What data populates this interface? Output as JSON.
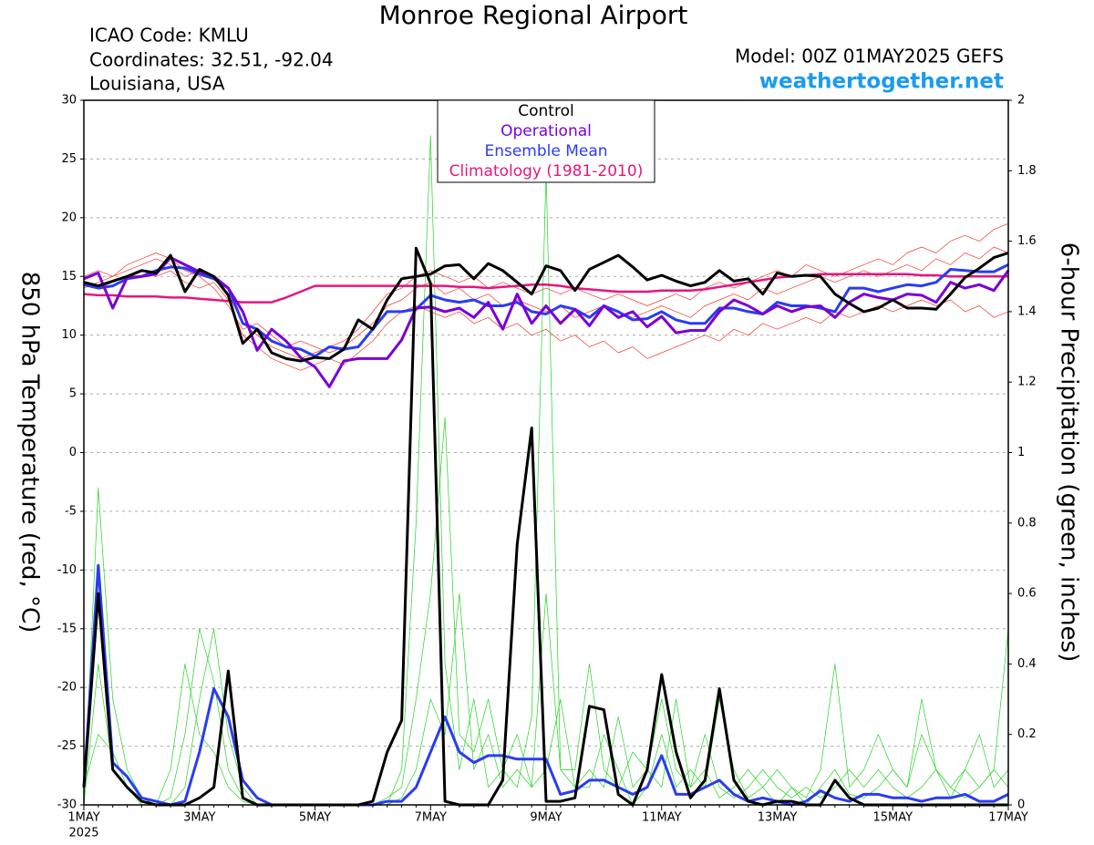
{
  "chart_data": {
    "type": "line",
    "title": "Monroe Regional Airport",
    "info": [
      "ICAO Code: KMLU",
      "Coordinates: 32.51, -92.04",
      "Louisiana, USA"
    ],
    "model": "Model: 00Z 01MAY2025 GEFS",
    "website": "weathertogether.net",
    "ylabel": "850 hPa Temperature (red, °C)",
    "y2label": "6-hour Precipitation (green, inches)",
    "x_sublabel": "2025",
    "legend": "upper center",
    "grid": true,
    "categories": [
      "1MAY",
      null,
      null,
      null,
      null,
      null,
      null,
      null,
      "3MAY",
      null,
      null,
      null,
      null,
      null,
      null,
      null,
      "5MAY",
      null,
      null,
      null,
      null,
      null,
      null,
      null,
      "7MAY",
      null,
      null,
      null,
      null,
      null,
      null,
      null,
      "9MAY",
      null,
      null,
      null,
      null,
      null,
      null,
      null,
      "11MAY",
      null,
      null,
      null,
      null,
      null,
      null,
      null,
      "13MAY",
      null,
      null,
      null,
      null,
      null,
      null,
      null,
      "15MAY",
      null,
      null,
      null,
      null,
      null,
      null,
      null,
      "17MAY"
    ],
    "ylim": [
      -30,
      30
    ],
    "yticks": [
      -30,
      -25,
      -20,
      -15,
      -10,
      -5,
      0,
      5,
      10,
      15,
      20,
      25,
      30
    ],
    "y2lim": [
      0,
      2
    ],
    "y2ticks": [
      0,
      0.2,
      0.4,
      0.6,
      0.8,
      1,
      1.2,
      1.4,
      1.6,
      1.8,
      2
    ],
    "members": [
      {
        "color": "#f03a30",
        "values": [
          14,
          14.5,
          15,
          15.5,
          16,
          16.5,
          16,
          15,
          15.5,
          15,
          13.5,
          11,
          10,
          9,
          8.5,
          8,
          8.5,
          9,
          9.5,
          10.5,
          12,
          13.5,
          14,
          15,
          15.5,
          15,
          14.5,
          15,
          14,
          14.5,
          14,
          13.5,
          14,
          13.5,
          14,
          13.5,
          13,
          13.5,
          13,
          12.5,
          13,
          13.5,
          13,
          14,
          14.5,
          14,
          14.5,
          15,
          15.5,
          15,
          16,
          15.5,
          15,
          15.5,
          16,
          16.5,
          16,
          17,
          17.5,
          17,
          18,
          18.5,
          18,
          19,
          19.5
        ]
      },
      {
        "color": "#f03a30",
        "values": [
          14.5,
          14,
          14.5,
          15,
          15.5,
          15,
          15.5,
          14.5,
          14,
          14.5,
          13,
          10,
          9,
          8,
          7.5,
          7,
          7.5,
          8,
          7.5,
          8.5,
          9.5,
          11,
          12,
          12.5,
          12,
          11.5,
          12,
          11,
          11.5,
          10.5,
          11,
          10,
          10.5,
          9.5,
          10,
          9,
          9.5,
          8.5,
          9,
          8,
          8.5,
          9,
          9.5,
          10,
          9.5,
          10.5,
          10,
          11,
          10.5,
          11,
          11.5,
          11,
          12,
          11.5,
          12,
          12.5,
          12,
          12.5,
          13,
          12.5,
          13,
          12,
          12.5,
          11.5,
          12
        ]
      },
      {
        "color": "#f03a30",
        "values": [
          15,
          15.5,
          15,
          16,
          16.5,
          17,
          16.5,
          15.5,
          15,
          14,
          12.5,
          10.5,
          11,
          10,
          9,
          9.5,
          9,
          8.5,
          9,
          10,
          11,
          12.5,
          13,
          14,
          14.5,
          13.5,
          14,
          13,
          13.5,
          12.5,
          13,
          12.5,
          12,
          12.5,
          11.5,
          12,
          12.5,
          12,
          11.5,
          12,
          12.5,
          12,
          11.5,
          12.5,
          13,
          13.5,
          13,
          14,
          13.5,
          14,
          14.5,
          15,
          14.5,
          15,
          15.5,
          15,
          15.5,
          16,
          15.5,
          16.5,
          16,
          17,
          16.5,
          17.5,
          17
        ]
      },
      {
        "color": "#22d422",
        "axis": "y2",
        "values": [
          0,
          0.9,
          0.3,
          0.1,
          0.02,
          0,
          0,
          0.05,
          0.3,
          0.5,
          0.2,
          0.05,
          0,
          0,
          0,
          0,
          0,
          0,
          0,
          0,
          0,
          0,
          0.1,
          0.8,
          1.9,
          0.4,
          0.1,
          0.3,
          0.05,
          0.1,
          0.2,
          0.05,
          0.6,
          0.1,
          0.05,
          0.05,
          0.2,
          0.1,
          0,
          0.05,
          0.2,
          0.05,
          0.1,
          0.05,
          0.3,
          0.1,
          0.02,
          0.05,
          0.1,
          0.05,
          0,
          0.05,
          0.1,
          0.03,
          0.02,
          0.05,
          0.1,
          0.05,
          0.2,
          0.1,
          0.05,
          0.1,
          0.05,
          0.1,
          0.5
        ]
      },
      {
        "color": "#22d422",
        "axis": "y2",
        "values": [
          0,
          0.4,
          0.1,
          0.05,
          0,
          0,
          0.02,
          0.2,
          0.5,
          0.35,
          0.1,
          0.02,
          0,
          0,
          0,
          0,
          0,
          0,
          0,
          0,
          0,
          0.02,
          0.05,
          0.3,
          0.6,
          1.1,
          0.2,
          0.15,
          0.3,
          0.1,
          0.05,
          0.25,
          1.8,
          0.1,
          0.1,
          0.4,
          0.1,
          0.05,
          0.15,
          0.1,
          0.05,
          0.3,
          0.05,
          0.1,
          0.02,
          0.05,
          0.1,
          0.05,
          0,
          0.05,
          0.02,
          0.1,
          0.4,
          0.05,
          0.1,
          0.2,
          0.1,
          0.05,
          0.3,
          0.1,
          0.02,
          0.1,
          0.2,
          0.05,
          0.1
        ]
      },
      {
        "color": "#22d422",
        "axis": "y2",
        "values": [
          0.05,
          0.2,
          0.15,
          0.05,
          0.02,
          0,
          0.1,
          0.4,
          0.2,
          0.15,
          0.05,
          0.01,
          0,
          0,
          0,
          0,
          0,
          0,
          0,
          0,
          0,
          0,
          0.02,
          0.1,
          0.3,
          0.2,
          0.6,
          0.1,
          0.2,
          0.05,
          0.1,
          0.05,
          0.1,
          0.3,
          0.05,
          0.1,
          0.05,
          0.25,
          0.05,
          0.1,
          0.3,
          0.1,
          0.05,
          0.2,
          0.05,
          0.02,
          0.05,
          0.1,
          0.05,
          0.02,
          0.05,
          0.02,
          0.05,
          0.1,
          0.05,
          0.1,
          0.05,
          0.02,
          0.05,
          0.1,
          0.05,
          0.02,
          0.05,
          0.1,
          0.05
        ]
      }
    ],
    "series": [
      {
        "name": "Climatology (1981-2010)",
        "color": "#e6157f",
        "values": [
          13.5,
          13.4,
          13.4,
          13.3,
          13.3,
          13.3,
          13.2,
          13.2,
          13.1,
          13.0,
          12.9,
          12.8,
          12.8,
          12.8,
          13.2,
          13.7,
          14.2,
          14.2,
          14.2,
          14.2,
          14.2,
          14.2,
          14.2,
          14.2,
          14.2,
          14.2,
          14.1,
          14.1,
          14.0,
          14.1,
          14.2,
          14.3,
          14.3,
          14.2,
          14.0,
          13.9,
          13.8,
          13.7,
          13.7,
          13.7,
          13.8,
          13.8,
          13.8,
          13.9,
          14.1,
          14.3,
          14.5,
          14.7,
          14.9,
          15.0,
          15.1,
          15.2,
          15.2,
          15.2,
          15.2,
          15.2,
          15.2,
          15.2,
          15.1,
          15.1,
          15.0,
          15.0,
          15.0,
          15.0,
          15.0
        ]
      },
      {
        "name": "Ensemble Mean",
        "color": "#2a3cf0",
        "values": [
          14.3,
          14.0,
          14.2,
          14.8,
          15.0,
          15.5,
          15.8,
          15.7,
          15.2,
          14.8,
          14.0,
          11.0,
          10.5,
          9.5,
          9.0,
          8.8,
          8.2,
          9.0,
          8.8,
          9.0,
          10.5,
          12.0,
          12.0,
          12.2,
          13.4,
          13.0,
          12.8,
          13.0,
          12.5,
          12.5,
          12.8,
          12.0,
          11.8,
          12.5,
          12.2,
          11.5,
          12.5,
          12.0,
          11.3,
          11.4,
          12.0,
          11.3,
          11.0,
          11.0,
          12.3,
          12.3,
          12.0,
          11.8,
          12.8,
          12.5,
          12.5,
          12.3,
          12.0,
          14.0,
          14.0,
          13.7,
          14.0,
          14.3,
          14.2,
          14.5,
          15.6,
          15.5,
          15.4,
          15.4,
          16.0
        ]
      },
      {
        "name": "Operational",
        "color": "#7a00d6",
        "values": [
          14.8,
          15.3,
          12.3,
          14.9,
          15.0,
          15.2,
          16.6,
          16.0,
          15.4,
          15.0,
          14.0,
          12.0,
          8.7,
          10.5,
          9.5,
          8.1,
          7.3,
          5.6,
          7.8,
          8.0,
          8.0,
          8.0,
          9.6,
          12.3,
          12.4,
          12.0,
          12.3,
          11.5,
          12.8,
          10.5,
          13.5,
          11.0,
          12.5,
          11.0,
          12.2,
          10.8,
          12.5,
          11.5,
          12.0,
          10.7,
          11.6,
          10.2,
          10.4,
          10.4,
          12.0,
          13.0,
          12.5,
          11.8,
          12.5,
          12.0,
          12.4,
          12.5,
          11.5,
          12.8,
          13.5,
          13.2,
          13.0,
          13.5,
          13.4,
          12.8,
          14.5,
          14.0,
          14.3,
          13.8,
          15.5
        ]
      },
      {
        "name": "Control",
        "color": "#000000",
        "values": [
          14.5,
          14.2,
          14.6,
          15.0,
          15.5,
          15.3,
          16.8,
          13.7,
          15.6,
          15.0,
          13.4,
          9.3,
          10.5,
          8.5,
          8.0,
          7.8,
          8.1,
          8.0,
          8.8,
          11.3,
          10.5,
          13.0,
          14.8,
          15.0,
          15.2,
          15.9,
          16.0,
          14.8,
          16.1,
          15.5,
          14.5,
          13.5,
          15.9,
          15.5,
          13.8,
          15.6,
          16.2,
          16.8,
          15.8,
          14.7,
          15.1,
          14.6,
          14.2,
          14.5,
          15.5,
          14.6,
          14.8,
          13.5,
          15.3,
          15.0,
          15.1,
          15.0,
          13.5,
          12.7,
          12.0,
          12.3,
          13.0,
          12.3,
          12.3,
          12.2,
          13.5,
          14.9,
          15.7,
          16.6,
          17.0
        ]
      },
      {
        "color": "#2a3cf0",
        "axis": "y2",
        "values": [
          0.05,
          0.68,
          0.12,
          0.08,
          0.02,
          0.01,
          0,
          0.01,
          0.15,
          0.33,
          0.25,
          0.07,
          0.02,
          0,
          0,
          0,
          0,
          0,
          0,
          0,
          0,
          0.01,
          0.01,
          0.05,
          0.15,
          0.25,
          0.15,
          0.12,
          0.14,
          0.14,
          0.13,
          0.13,
          0.13,
          0.03,
          0.04,
          0.07,
          0.07,
          0.05,
          0.03,
          0.05,
          0.14,
          0.03,
          0.03,
          0.05,
          0.07,
          0.03,
          0.01,
          0.02,
          0.01,
          0,
          0.01,
          0.04,
          0.02,
          0.01,
          0.03,
          0.03,
          0.02,
          0.02,
          0.01,
          0.02,
          0.02,
          0.03,
          0.01,
          0.01,
          0.03
        ]
      },
      {
        "color": "#000000",
        "axis": "y2",
        "values": [
          0.05,
          0.6,
          0.1,
          0.05,
          0.01,
          0,
          0,
          0,
          0.02,
          0.05,
          0.38,
          0.02,
          0,
          0,
          0,
          0,
          0,
          0,
          0,
          0,
          0.01,
          0.15,
          0.24,
          1.58,
          1.48,
          0.01,
          0,
          0,
          0,
          0.07,
          0.74,
          1.07,
          0.01,
          0.01,
          0.02,
          0.28,
          0.27,
          0.03,
          0,
          0.1,
          0.37,
          0.15,
          0.02,
          0.07,
          0.33,
          0.07,
          0.01,
          0,
          0.01,
          0.01,
          0,
          0,
          0.07,
          0.02,
          0,
          0,
          0,
          0,
          0,
          0,
          0,
          0,
          0,
          0,
          0
        ]
      }
    ]
  }
}
